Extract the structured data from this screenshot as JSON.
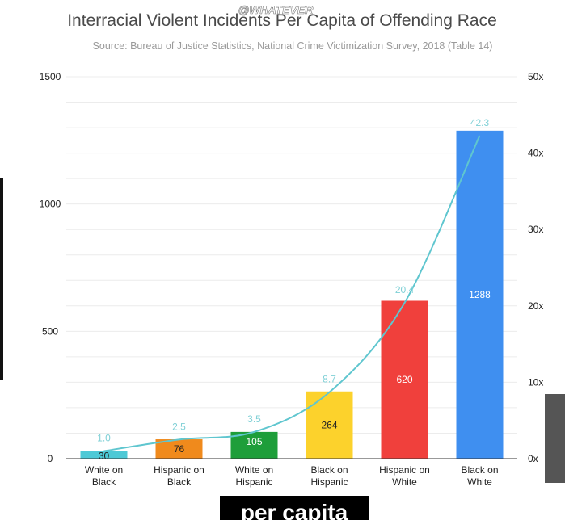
{
  "chart_data": {
    "type": "bar",
    "title": "Interracial Violent Incidents Per Capita of Offending Race",
    "subtitle": "Source: Bureau of Justice Statistics, National Crime Victimization Survey, 2018 (Table 14)",
    "categories": [
      [
        "White on",
        "Black"
      ],
      [
        "Hispanic on",
        "Black"
      ],
      [
        "White on",
        "Hispanic"
      ],
      [
        "Black on",
        "Hispanic"
      ],
      [
        "Hispanic on",
        "White"
      ],
      [
        "Black on",
        "White"
      ]
    ],
    "values": [
      30,
      76,
      105,
      264,
      620,
      1288
    ],
    "value_labels": [
      "30",
      "76",
      "105",
      "264",
      "620",
      "1288"
    ],
    "colors": [
      "#4dc9d6",
      "#f08a1c",
      "#1e9e3a",
      "#fcd22c",
      "#f0403c",
      "#3f8ff0"
    ],
    "label_colors": [
      "#222222",
      "#222222",
      "#ffffff",
      "#222222",
      "#ffffff",
      "#ffffff"
    ],
    "ylim": [
      0,
      1500
    ],
    "yticks": [
      "0",
      "500",
      "1000",
      "1500"
    ],
    "ytick_values": [
      0,
      500,
      1000,
      1500
    ],
    "ratio_series": {
      "values": [
        1.0,
        2.5,
        3.5,
        8.7,
        20.4,
        42.3
      ],
      "labels": [
        "1.0",
        "2.5",
        "3.5",
        "8.7",
        "20.4",
        "42.3"
      ],
      "color": "#5fc6cf",
      "ylim": [
        0,
        50
      ],
      "ticks": [
        "0x",
        "10x",
        "20x",
        "30x",
        "40x",
        "50x"
      ],
      "tick_values": [
        0,
        10,
        20,
        30,
        40,
        50
      ]
    },
    "grid": true
  },
  "watermark": "@WHATEVER",
  "caption": "per capita"
}
